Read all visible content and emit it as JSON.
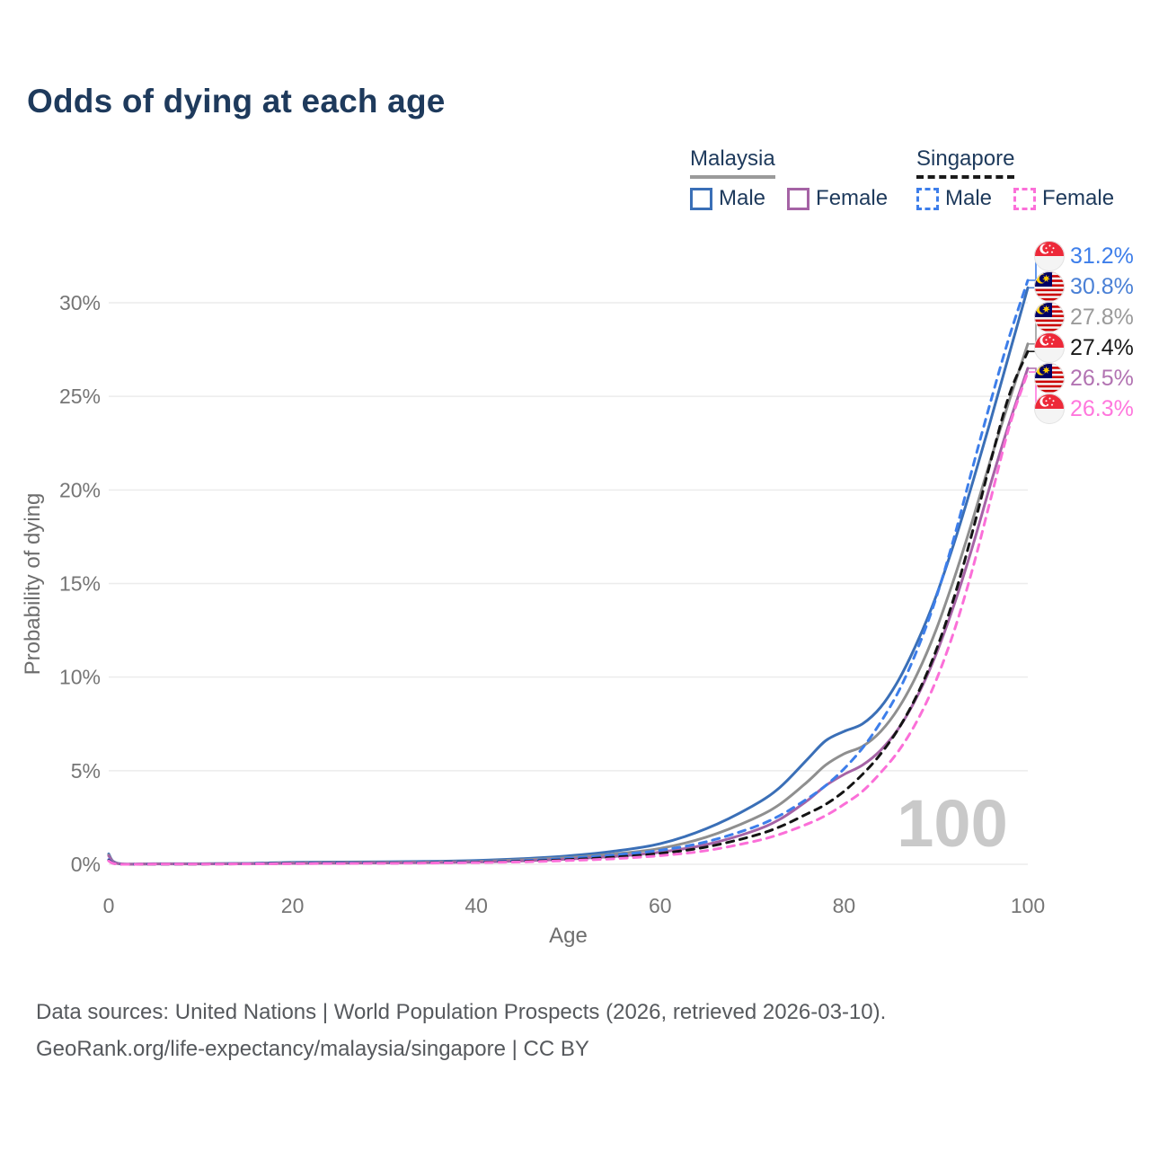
{
  "title": "Odds of dying at each age",
  "legend": {
    "groups": [
      {
        "name": "Malaysia",
        "style": "solid",
        "underline_color": "#9a9a9a",
        "items": [
          {
            "label": "Male",
            "series": "Malaysia Male"
          },
          {
            "label": "Female",
            "series": "Malaysia Female"
          }
        ]
      },
      {
        "name": "Singapore",
        "style": "dashed",
        "underline_color": "#1a1a1a",
        "items": [
          {
            "label": "Male",
            "series": "Singapore Male"
          },
          {
            "label": "Female",
            "series": "Singapore Female"
          }
        ]
      }
    ]
  },
  "watermark_age": "100",
  "footer": {
    "line1": "Data sources: United Nations | World Population Prospects (2026, retrieved 2026-03-10).",
    "line2": "GeoRank.org/life-expectancy/malaysia/singapore | CC BY"
  },
  "end_labels": [
    {
      "series": "Singapore Male",
      "flag": "singapore",
      "value": "31.2%",
      "color": "#3D7EEA"
    },
    {
      "series": "Malaysia Male",
      "flag": "malaysia",
      "value": "30.8%",
      "color": "#4A80D6"
    },
    {
      "series": "Malaysia Overall",
      "flag": "malaysia",
      "value": "27.8%",
      "color": "#9a9a9a"
    },
    {
      "series": "Singapore Overall",
      "flag": "singapore",
      "value": "27.4%",
      "color": "#1a1a1a"
    },
    {
      "series": "Malaysia Female",
      "flag": "malaysia",
      "value": "26.5%",
      "color": "#B273B2"
    },
    {
      "series": "Singapore Female",
      "flag": "singapore",
      "value": "26.3%",
      "color": "#FF77DD"
    }
  ],
  "chart_data": {
    "type": "line",
    "xlabel": "Age",
    "ylabel": "Probability of dying",
    "xticks": [
      0,
      20,
      40,
      60,
      80,
      100
    ],
    "ytick_percent": [
      0,
      5,
      10,
      15,
      20,
      25,
      30
    ],
    "xlim": [
      0,
      100
    ],
    "ylim_percent": [
      0,
      32
    ],
    "grid": "horizontal",
    "x": [
      0,
      1,
      5,
      10,
      15,
      20,
      25,
      30,
      35,
      40,
      45,
      50,
      55,
      60,
      65,
      70,
      73,
      76,
      78,
      80,
      82,
      84,
      86,
      88,
      90,
      92,
      94,
      96,
      98,
      100
    ],
    "series": [
      {
        "name": "Malaysia Male",
        "country": "Malaysia",
        "group": "Male",
        "style": "solid",
        "color": "#3A6FB7",
        "values": [
          0.55,
          0.05,
          0.03,
          0.03,
          0.05,
          0.1,
          0.12,
          0.13,
          0.16,
          0.2,
          0.3,
          0.45,
          0.7,
          1.1,
          1.9,
          3.1,
          4.1,
          5.6,
          6.6,
          7.1,
          7.5,
          8.4,
          9.9,
          11.9,
          14.3,
          17.2,
          20.4,
          23.8,
          27.3,
          30.8
        ]
      },
      {
        "name": "Malaysia Overall",
        "country": "Malaysia",
        "group": "Overall",
        "style": "solid",
        "color": "#8F8F8F",
        "values": [
          0.5,
          0.04,
          0.025,
          0.025,
          0.04,
          0.07,
          0.09,
          0.1,
          0.12,
          0.16,
          0.24,
          0.36,
          0.55,
          0.85,
          1.45,
          2.4,
          3.2,
          4.4,
          5.3,
          5.9,
          6.3,
          7.1,
          8.4,
          10.2,
          12.5,
          15.3,
          18.4,
          21.7,
          24.8,
          27.8
        ]
      },
      {
        "name": "Malaysia Female",
        "country": "Malaysia",
        "group": "Female",
        "style": "solid",
        "color": "#A563A5",
        "values": [
          0.45,
          0.04,
          0.02,
          0.02,
          0.03,
          0.05,
          0.06,
          0.07,
          0.09,
          0.12,
          0.18,
          0.28,
          0.42,
          0.65,
          1.05,
          1.75,
          2.4,
          3.4,
          4.2,
          4.8,
          5.3,
          6.1,
          7.3,
          9.0,
          11.2,
          13.9,
          17.0,
          20.4,
          23.6,
          26.5
        ]
      },
      {
        "name": "Singapore Male",
        "country": "Singapore",
        "group": "Male",
        "style": "dashed",
        "color": "#3D7EEA",
        "values": [
          0.25,
          0.02,
          0.015,
          0.02,
          0.035,
          0.06,
          0.07,
          0.08,
          0.1,
          0.14,
          0.2,
          0.32,
          0.5,
          0.75,
          1.2,
          1.95,
          2.6,
          3.5,
          4.2,
          5.1,
          6.2,
          7.6,
          9.3,
          11.5,
          14.2,
          17.5,
          21.2,
          24.8,
          28.2,
          31.2
        ]
      },
      {
        "name": "Singapore Overall",
        "country": "Singapore",
        "group": "Overall",
        "style": "dashed",
        "color": "#141414",
        "values": [
          0.2,
          0.015,
          0.01,
          0.015,
          0.025,
          0.045,
          0.055,
          0.065,
          0.08,
          0.11,
          0.16,
          0.25,
          0.38,
          0.58,
          0.92,
          1.5,
          2.0,
          2.7,
          3.2,
          3.9,
          4.8,
          5.9,
          7.3,
          9.1,
          11.4,
          14.3,
          17.8,
          21.6,
          25.1,
          27.4
        ]
      },
      {
        "name": "Singapore Female",
        "country": "Singapore",
        "group": "Female",
        "style": "dashed",
        "color": "#FB6FD8",
        "values": [
          0.18,
          0.012,
          0.008,
          0.012,
          0.02,
          0.035,
          0.045,
          0.055,
          0.065,
          0.09,
          0.13,
          0.2,
          0.3,
          0.46,
          0.73,
          1.2,
          1.6,
          2.15,
          2.6,
          3.2,
          3.9,
          4.9,
          6.1,
          7.7,
          9.8,
          12.5,
          15.8,
          19.6,
          23.4,
          26.3
        ]
      }
    ]
  }
}
